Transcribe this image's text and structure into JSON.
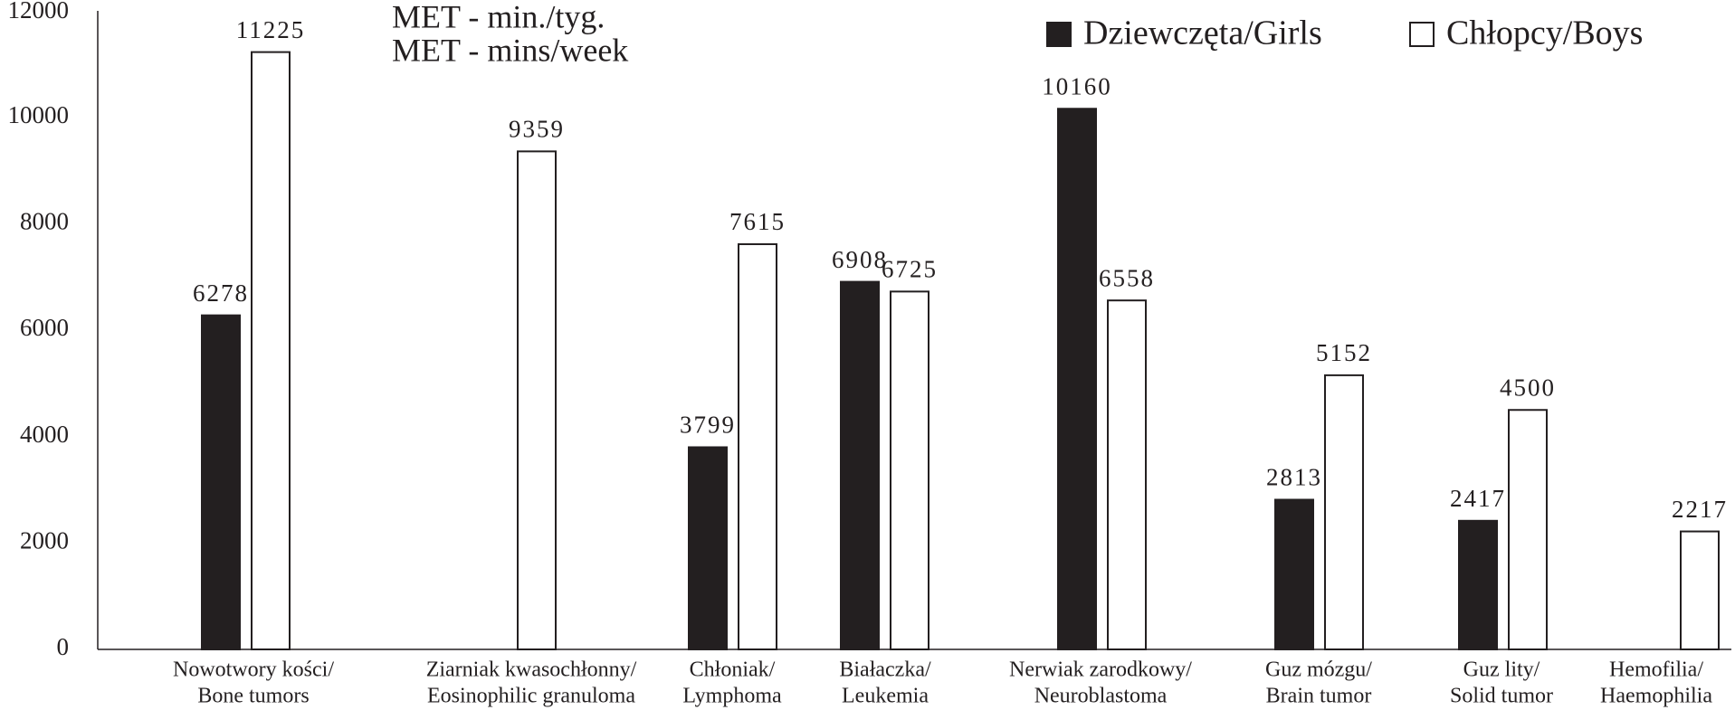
{
  "chart_data": {
    "type": "bar",
    "annotations": [
      "MET - min./tyg.",
      "MET - mins/week"
    ],
    "categories": [
      [
        "Nowotwory kości/",
        "Bone tumors"
      ],
      [
        "Ziarniak kwasochłonny/",
        "Eosinophilic granuloma"
      ],
      [
        "Chłoniak/",
        "Lymphoma"
      ],
      [
        "Białaczka/",
        "Leukemia"
      ],
      [
        "Nerwiak zarodkowy/",
        "Neuroblastoma"
      ],
      [
        "Guz mózgu/",
        "Brain tumor"
      ],
      [
        "Guz lity/",
        "Solid tumor"
      ],
      [
        "Hemofilia/",
        "Haemophilia"
      ]
    ],
    "series": [
      {
        "name": "Dziewczęta/Girls",
        "color": "#231f20",
        "values": [
          6278,
          null,
          3799,
          6908,
          10160,
          2813,
          2417,
          null
        ]
      },
      {
        "name": "Chłopcy/Boys",
        "color": "#ffffff",
        "values": [
          11225,
          9359,
          7615,
          6725,
          6558,
          5152,
          4500,
          2217
        ]
      }
    ],
    "ylim": [
      0,
      12000
    ],
    "yticks": [
      0,
      2000,
      4000,
      6000,
      8000,
      10000,
      12000
    ],
    "grid": false
  }
}
